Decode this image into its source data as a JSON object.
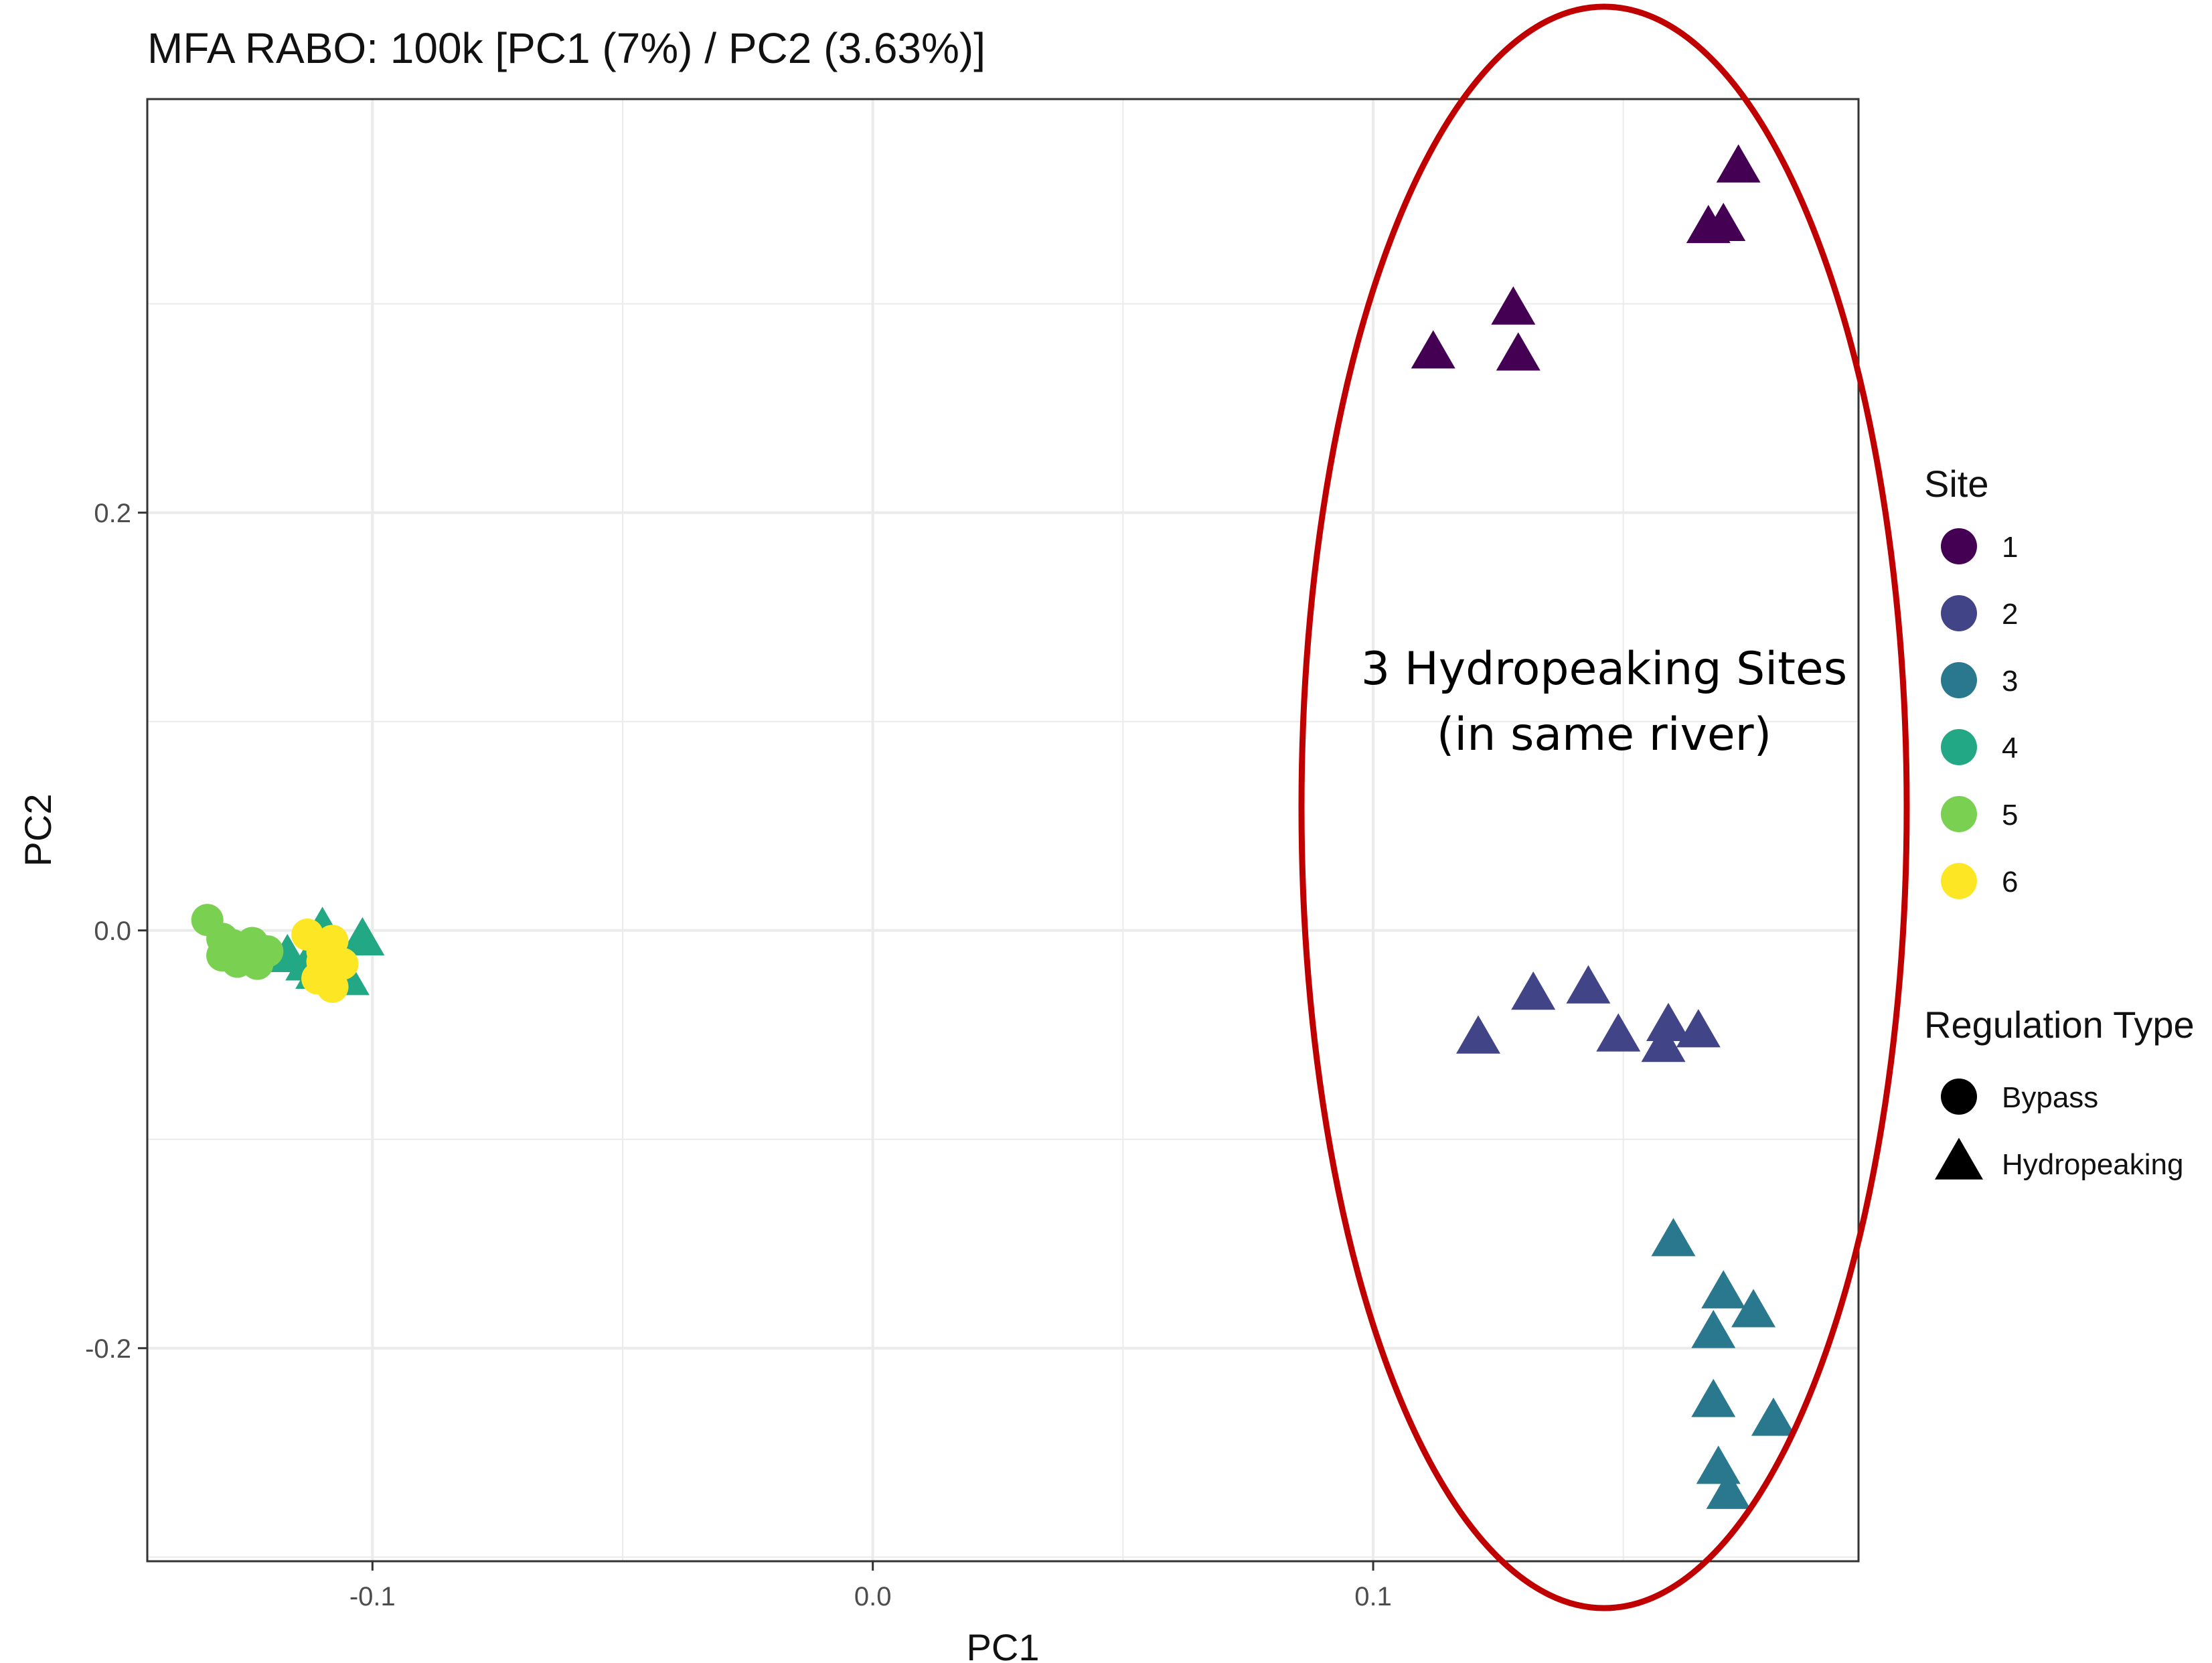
{
  "chart_data": {
    "type": "scatter",
    "title": "MFA RABO: 100k [PC1 (7%) / PC2 (3.63%)]",
    "xlabel": "PC1",
    "ylabel": "PC2",
    "xlim": [
      -0.145,
      0.197
    ],
    "ylim": [
      -0.302,
      0.398
    ],
    "xticks": [
      -0.1,
      0.0,
      0.1
    ],
    "xtick_labels": [
      "-0.1",
      "0.0",
      "0.1"
    ],
    "yticks": [
      -0.2,
      0.0,
      0.2
    ],
    "ytick_labels": [
      "-0.2",
      "0.0",
      "0.2"
    ],
    "grid": true,
    "legend_position": "right",
    "color_legend": {
      "title": "Site",
      "entries": [
        {
          "label": "1",
          "color": "#440154"
        },
        {
          "label": "2",
          "color": "#414487"
        },
        {
          "label": "3",
          "color": "#2a788e"
        },
        {
          "label": "4",
          "color": "#22a884"
        },
        {
          "label": "5",
          "color": "#7ad151"
        },
        {
          "label": "6",
          "color": "#fde725"
        }
      ]
    },
    "shape_legend": {
      "title": "Regulation Type",
      "entries": [
        {
          "label": "Bypass",
          "shape": "circle"
        },
        {
          "label": "Hydropeaking",
          "shape": "triangle"
        }
      ]
    },
    "series": [
      {
        "site": "1",
        "color": "#440154",
        "shape": "triangle",
        "points": [
          {
            "x": 0.173,
            "y": 0.365
          },
          {
            "x": 0.17,
            "y": 0.337
          },
          {
            "x": 0.167,
            "y": 0.336
          },
          {
            "x": 0.128,
            "y": 0.297
          },
          {
            "x": 0.112,
            "y": 0.276
          },
          {
            "x": 0.129,
            "y": 0.275
          }
        ]
      },
      {
        "site": "2",
        "color": "#414487",
        "shape": "triangle",
        "points": [
          {
            "x": 0.143,
            "y": -0.028
          },
          {
            "x": 0.132,
            "y": -0.031
          },
          {
            "x": 0.121,
            "y": -0.052
          },
          {
            "x": 0.149,
            "y": -0.051
          },
          {
            "x": 0.159,
            "y": -0.046
          },
          {
            "x": 0.165,
            "y": -0.049
          },
          {
            "x": 0.158,
            "y": -0.056
          }
        ]
      },
      {
        "site": "3",
        "color": "#2a788e",
        "shape": "triangle",
        "points": [
          {
            "x": 0.16,
            "y": -0.149
          },
          {
            "x": 0.17,
            "y": -0.174
          },
          {
            "x": 0.176,
            "y": -0.183
          },
          {
            "x": 0.168,
            "y": -0.193
          },
          {
            "x": 0.168,
            "y": -0.226
          },
          {
            "x": 0.18,
            "y": -0.235
          },
          {
            "x": 0.169,
            "y": -0.258
          },
          {
            "x": 0.171,
            "y": -0.27
          }
        ]
      },
      {
        "site": "4",
        "color": "#22a884",
        "shape": "triangle",
        "points": [
          {
            "x": -0.11,
            "y": 0.0
          },
          {
            "x": -0.102,
            "y": -0.005
          },
          {
            "x": -0.117,
            "y": -0.013
          },
          {
            "x": -0.113,
            "y": -0.017
          },
          {
            "x": -0.111,
            "y": -0.021
          },
          {
            "x": -0.105,
            "y": -0.024
          },
          {
            "x": -0.108,
            "y": -0.019
          }
        ]
      },
      {
        "site": "5",
        "color": "#7ad151",
        "shape": "circle",
        "points": [
          {
            "x": -0.133,
            "y": 0.005
          },
          {
            "x": -0.13,
            "y": -0.004
          },
          {
            "x": -0.128,
            "y": -0.007
          },
          {
            "x": -0.126,
            "y": -0.011
          },
          {
            "x": -0.124,
            "y": -0.006
          },
          {
            "x": -0.13,
            "y": -0.012
          },
          {
            "x": -0.127,
            "y": -0.015
          },
          {
            "x": -0.123,
            "y": -0.016
          },
          {
            "x": -0.121,
            "y": -0.01
          }
        ]
      },
      {
        "site": "6",
        "color": "#fde725",
        "shape": "circle",
        "points": [
          {
            "x": -0.113,
            "y": -0.002
          },
          {
            "x": -0.108,
            "y": -0.005
          },
          {
            "x": -0.11,
            "y": -0.01
          },
          {
            "x": -0.106,
            "y": -0.016
          },
          {
            "x": -0.109,
            "y": -0.019
          },
          {
            "x": -0.111,
            "y": -0.023
          },
          {
            "x": -0.108,
            "y": -0.027
          },
          {
            "x": -0.11,
            "y": -0.015
          }
        ]
      }
    ],
    "annotation": {
      "lines": [
        "3 Hydropeaking Sites",
        "(in same river)"
      ],
      "ellipse_color": "#c00000"
    }
  }
}
